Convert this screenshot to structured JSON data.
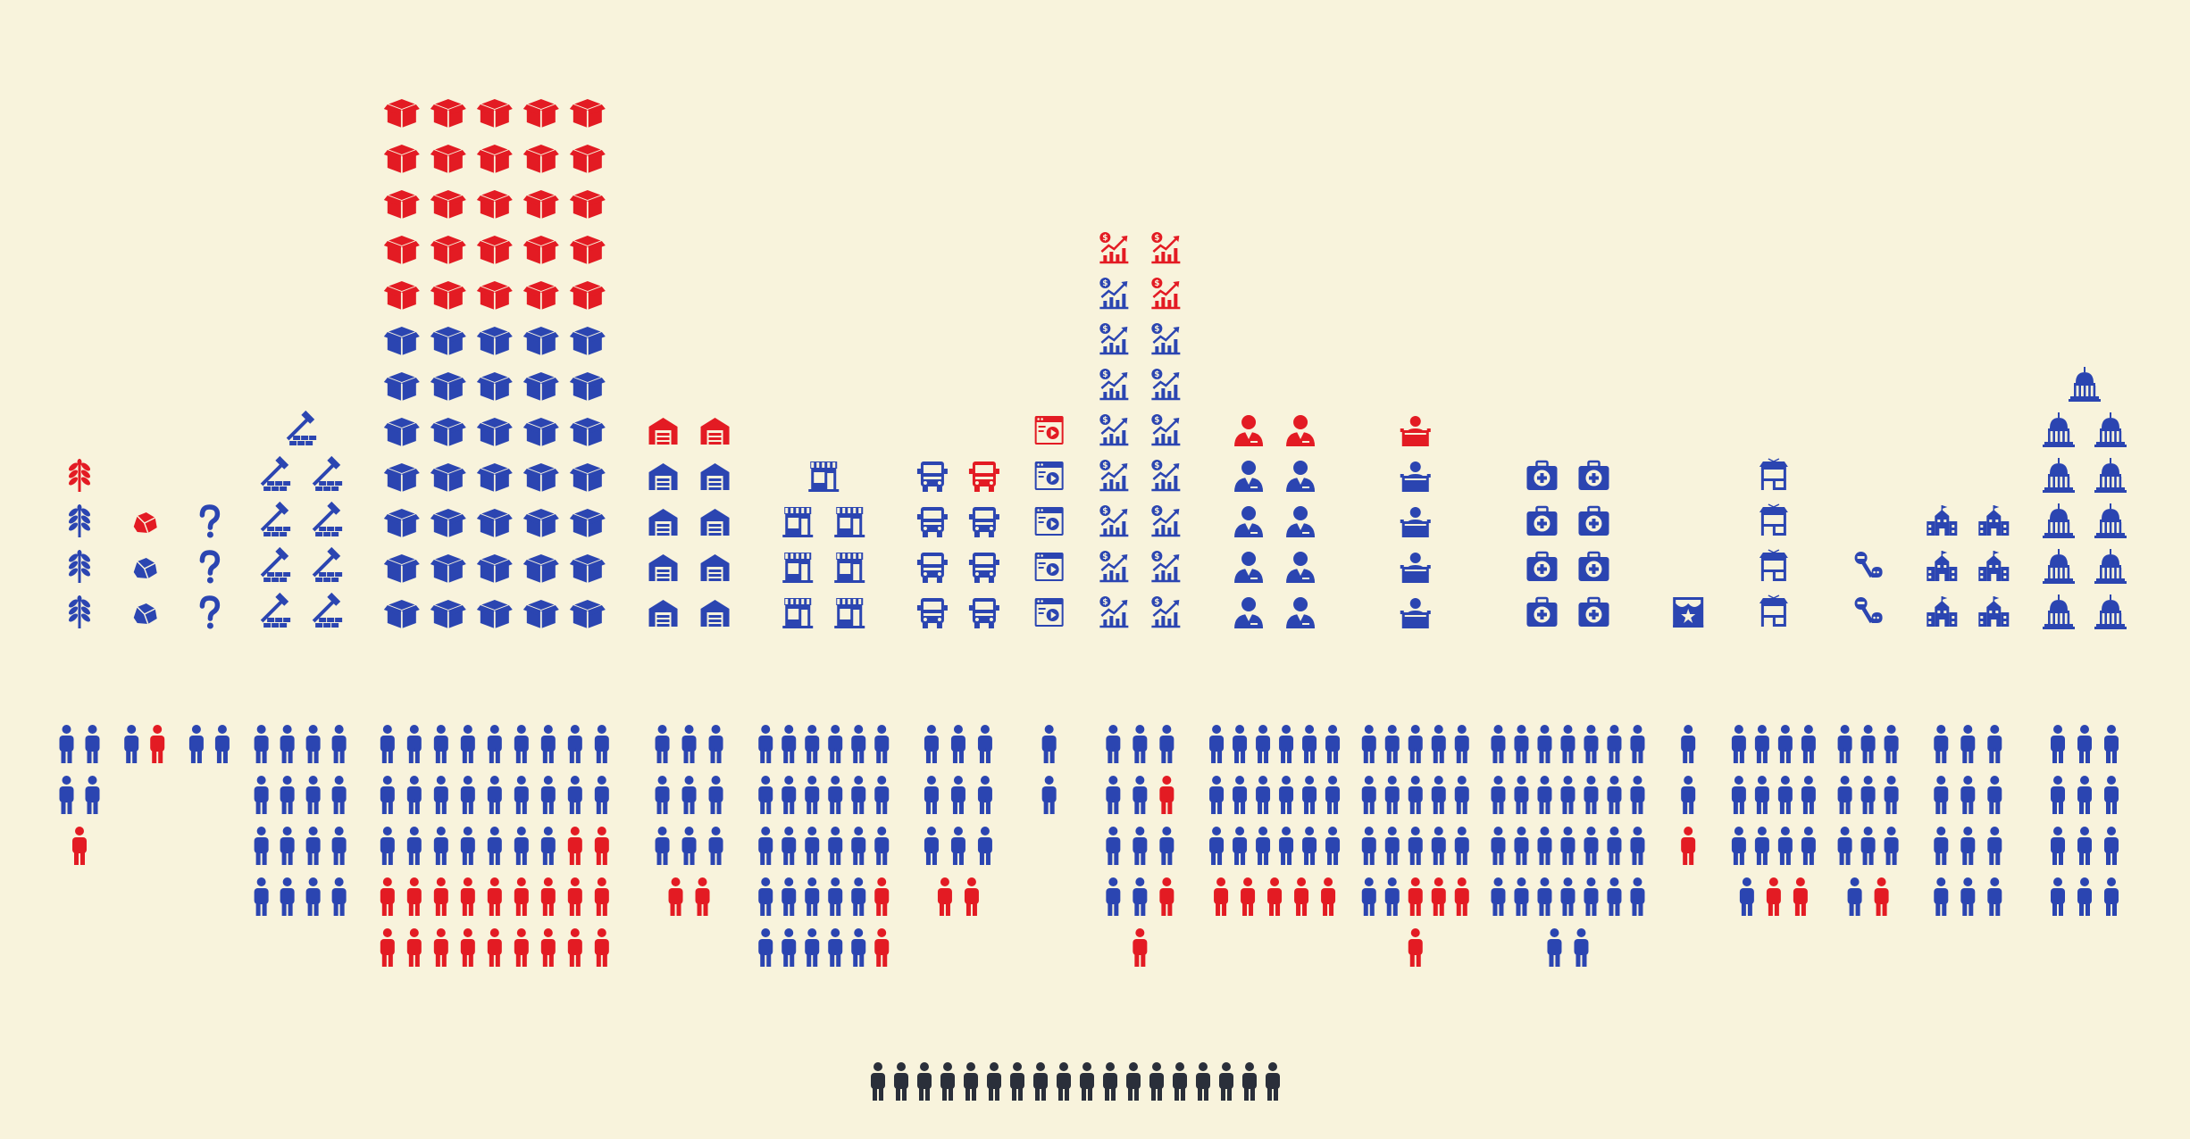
{
  "colors": {
    "background": "#f8f3dc",
    "blue": "#2b45b1",
    "red": "#e31b23",
    "dark": "#2a2f3a"
  },
  "chart_data": {
    "type": "pictogram",
    "legend": [],
    "sectors": [
      {
        "icon": "wheat-icon",
        "icons_blue": 3,
        "icons_red": 1,
        "people": [
          {
            "blue": 2,
            "red": 0
          },
          {
            "blue": 2,
            "red": 0
          },
          {
            "blue": 0,
            "red": 1
          }
        ]
      },
      {
        "icon": "rock-icon",
        "icons_blue": 2,
        "icons_red": 1,
        "people": [
          {
            "blue": 1,
            "red": 1
          }
        ]
      },
      {
        "icon": "question-icon",
        "icons_blue": 3,
        "icons_red": 0,
        "people": [
          {
            "blue": 2,
            "red": 0
          }
        ]
      },
      {
        "icon": "construction-icon",
        "icons_blue": 9,
        "icons_red": 0,
        "people": [
          {
            "blue": 4,
            "red": 0
          },
          {
            "blue": 4,
            "red": 0
          },
          {
            "blue": 4,
            "red": 0
          },
          {
            "blue": 4,
            "red": 0
          }
        ]
      },
      {
        "icon": "box-icon",
        "icons_blue": 35,
        "icons_red": 25,
        "people": [
          {
            "blue": 9,
            "red": 0
          },
          {
            "blue": 9,
            "red": 0
          },
          {
            "blue": 7,
            "red": 2
          },
          {
            "blue": 0,
            "red": 9
          },
          {
            "blue": 0,
            "red": 9
          }
        ]
      },
      {
        "icon": "warehouse-icon",
        "icons_blue": 8,
        "icons_red": 2,
        "people": [
          {
            "blue": 3,
            "red": 0
          },
          {
            "blue": 3,
            "red": 0
          },
          {
            "blue": 3,
            "red": 0
          },
          {
            "blue": 0,
            "red": 2
          }
        ]
      },
      {
        "icon": "store-icon",
        "icons_blue": 7,
        "icons_red": 0,
        "people": [
          {
            "blue": 6,
            "red": 0
          },
          {
            "blue": 6,
            "red": 0
          },
          {
            "blue": 6,
            "red": 0
          },
          {
            "blue": 5,
            "red": 1
          },
          {
            "blue": 5,
            "red": 1
          }
        ]
      },
      {
        "icon": "truck-icon",
        "icons_blue": 7,
        "icons_red": 1,
        "people": [
          {
            "blue": 3,
            "red": 0
          },
          {
            "blue": 3,
            "red": 0
          },
          {
            "blue": 3,
            "red": 0
          },
          {
            "blue": 0,
            "red": 2
          }
        ]
      },
      {
        "icon": "media-icon",
        "icons_blue": 4,
        "icons_red": 1,
        "people": [
          {
            "blue": 1,
            "red": 0
          },
          {
            "blue": 1,
            "red": 0
          }
        ]
      },
      {
        "icon": "finance-icon",
        "icons_blue": 15,
        "icons_red": 3,
        "people": [
          {
            "blue": 3,
            "red": 0
          },
          {
            "blue": 2,
            "red": 1
          },
          {
            "blue": 3,
            "red": 0
          },
          {
            "blue": 2,
            "red": 1
          },
          {
            "blue": 0,
            "red": 1
          }
        ]
      },
      {
        "icon": "professional-icon",
        "icons_blue": 8,
        "icons_red": 2,
        "people": [
          {
            "blue": 6,
            "red": 0
          },
          {
            "blue": 6,
            "red": 0
          },
          {
            "blue": 6,
            "red": 0
          },
          {
            "blue": 0,
            "red": 5
          }
        ]
      },
      {
        "icon": "education-icon",
        "icons_blue": 4,
        "icons_red": 1,
        "people": [
          {
            "blue": 5,
            "red": 0
          },
          {
            "blue": 5,
            "red": 0
          },
          {
            "blue": 5,
            "red": 0
          },
          {
            "blue": 2,
            "red": 3
          },
          {
            "blue": 0,
            "red": 1
          }
        ]
      },
      {
        "icon": "health-icon",
        "icons_blue": 8,
        "icons_red": 0,
        "people": [
          {
            "blue": 7,
            "red": 0
          },
          {
            "blue": 7,
            "red": 0
          },
          {
            "blue": 7,
            "red": 0
          },
          {
            "blue": 7,
            "red": 0
          },
          {
            "blue": 2,
            "red": 0
          }
        ]
      },
      {
        "icon": "theater-icon",
        "icons_blue": 1,
        "icons_red": 0,
        "people": [
          {
            "blue": 1,
            "red": 0
          },
          {
            "blue": 1,
            "red": 0
          },
          {
            "blue": 0,
            "red": 1
          }
        ]
      },
      {
        "icon": "restaurant-icon",
        "icons_blue": 4,
        "icons_red": 0,
        "people": [
          {
            "blue": 4,
            "red": 0
          },
          {
            "blue": 4,
            "red": 0
          },
          {
            "blue": 4,
            "red": 0
          },
          {
            "blue": 1,
            "red": 2
          }
        ]
      },
      {
        "icon": "services-icon",
        "icons_blue": 2,
        "icons_red": 0,
        "people": [
          {
            "blue": 3,
            "red": 0
          },
          {
            "blue": 3,
            "red": 0
          },
          {
            "blue": 3,
            "red": 0
          },
          {
            "blue": 1,
            "red": 1
          }
        ]
      },
      {
        "icon": "school-icon",
        "icons_blue": 6,
        "icons_red": 0,
        "people": [
          {
            "blue": 3,
            "red": 0
          },
          {
            "blue": 3,
            "red": 0
          },
          {
            "blue": 3,
            "red": 0
          },
          {
            "blue": 3,
            "red": 0
          }
        ]
      },
      {
        "icon": "government-icon",
        "icons_blue": 11,
        "icons_red": 0,
        "people": [
          {
            "blue": 3,
            "red": 0
          },
          {
            "blue": 3,
            "red": 0
          },
          {
            "blue": 3,
            "red": 0
          },
          {
            "blue": 3,
            "red": 0
          }
        ]
      }
    ],
    "unemployed_people": 18
  }
}
